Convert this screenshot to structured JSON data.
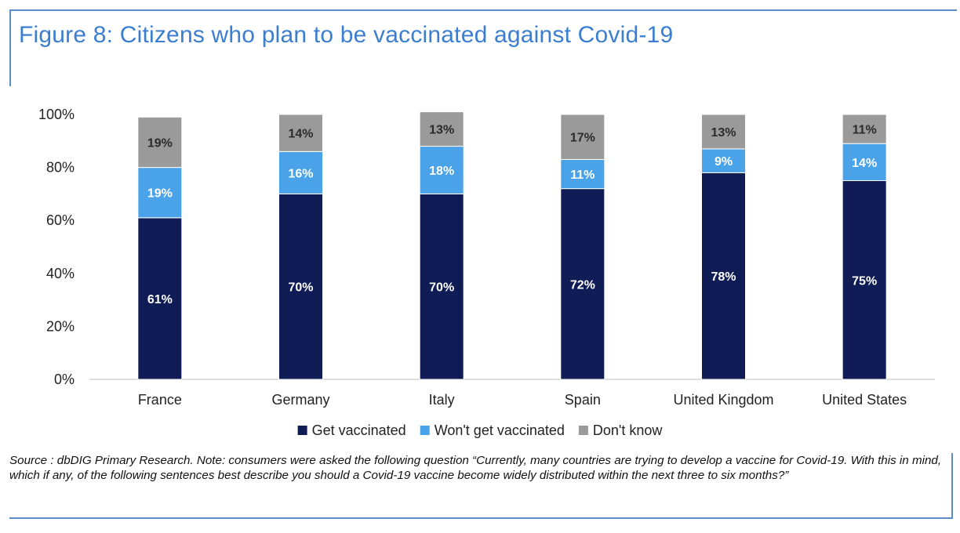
{
  "title": "Figure 8: Citizens who plan to be vaccinated against Covid-19",
  "source_note": "Source : dbDIG Primary Research. Note: consumers were asked the following question “Currently, many countries are trying to develop a vaccine for Covid-19. With this in mind, which if any, of the following sentences best describe you should a Covid-19 vaccine become widely distributed within the next three to six months?”",
  "colors": {
    "title": "#3b7ed0",
    "rule": "#5b8ec9",
    "get_vaccinated": "#101c56",
    "wont_get_vaccinated": "#4aa3e8",
    "dont_know": "#9a9a9a"
  },
  "chart_data": {
    "type": "bar",
    "stacked": true,
    "categories": [
      "France",
      "Germany",
      "Italy",
      "Spain",
      "United Kingdom",
      "United States"
    ],
    "series": [
      {
        "name": "Get vaccinated",
        "values": [
          61,
          70,
          70,
          72,
          78,
          75
        ],
        "labels": [
          "61%",
          "70%",
          "70%",
          "72%",
          "78%",
          "75%"
        ]
      },
      {
        "name": "Won't get vaccinated",
        "values": [
          19,
          16,
          18,
          11,
          9,
          14
        ],
        "labels": [
          "19%",
          "16%",
          "18%",
          "11%",
          "9%",
          "14%"
        ]
      },
      {
        "name": "Don't know",
        "values": [
          19,
          14,
          13,
          17,
          13,
          11
        ],
        "labels": [
          "19%",
          "14%",
          "13%",
          "17%",
          "13%",
          "11%"
        ]
      }
    ],
    "ylim": [
      0,
      100
    ],
    "yticks": [
      "0%",
      "20%",
      "40%",
      "60%",
      "80%",
      "100%"
    ],
    "grid": false,
    "legend_position": "bottom"
  }
}
